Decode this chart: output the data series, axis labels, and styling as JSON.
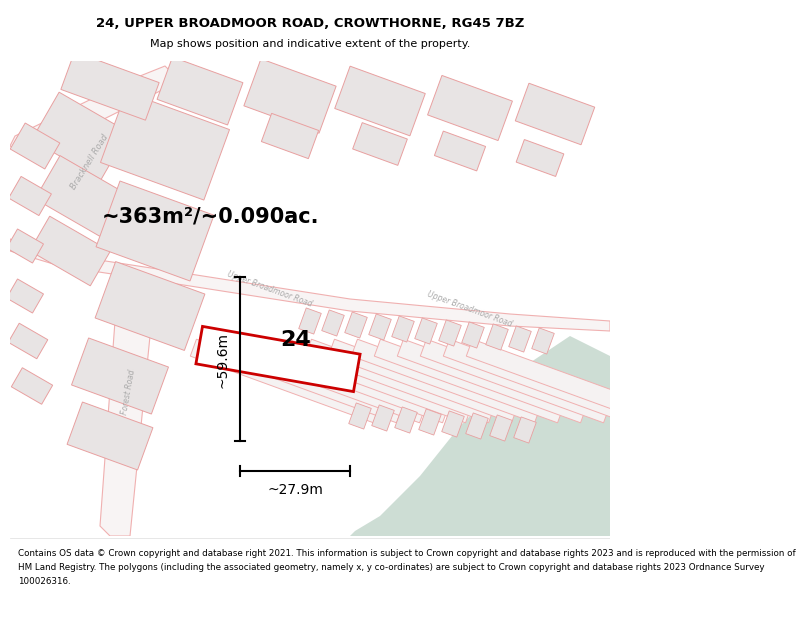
{
  "title": "24, UPPER BROADMOOR ROAD, CROWTHORNE, RG45 7BZ",
  "subtitle": "Map shows position and indicative extent of the property.",
  "footer_lines": [
    "Contains OS data © Crown copyright and database right 2021. This information is subject to Crown copyright and database rights 2023 and is reproduced with the permission of",
    "HM Land Registry. The polygons (including the associated geometry, namely x, y co-ordinates) are subject to Crown copyright and database rights 2023 Ordnance Survey",
    "100026316."
  ],
  "area_label": "~363m²/~0.090ac.",
  "dim_height": "~59.6m",
  "dim_width": "~27.9m",
  "number_label": "24",
  "map_bg": "#ffffff",
  "green_color": "#cdddd4",
  "building_fill": "#e8e4e4",
  "building_edge": "#e8a0a0",
  "road_color": "#f0b0b0",
  "property_fill": "#ffffff",
  "property_edge": "#cc0000",
  "dim_color": "#000000",
  "label_color": "#000000",
  "road_label_color": "#aaaaaa",
  "header_bg": "#ffffff",
  "footer_bg": "#ffffff"
}
